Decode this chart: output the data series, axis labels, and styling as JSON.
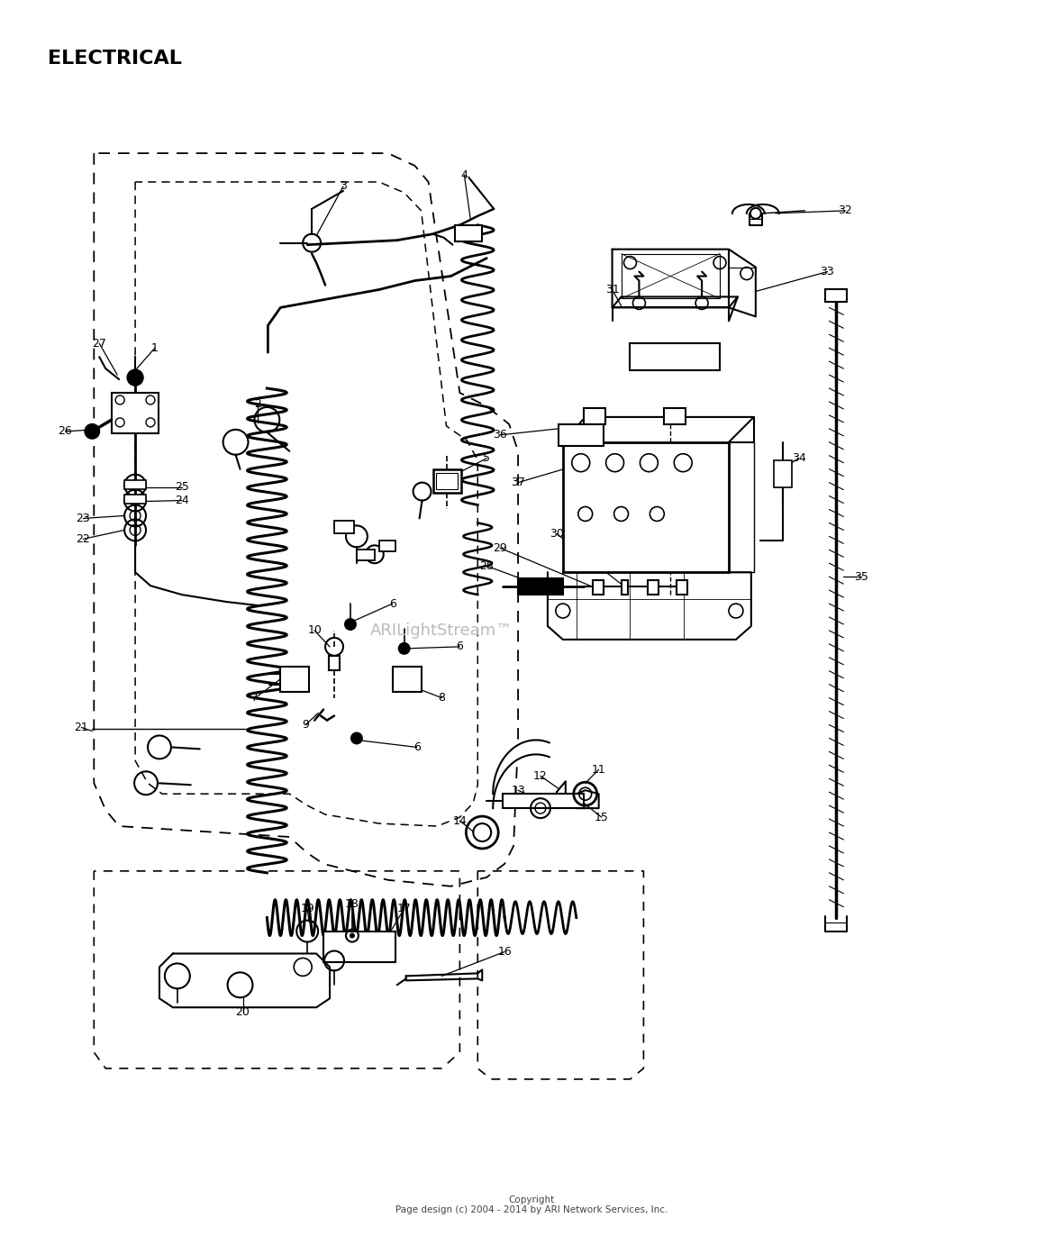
{
  "title": "ELECTRICAL",
  "background_color": "#ffffff",
  "text_color": "#000000",
  "copyright_text": "Copyright\nPage design (c) 2004 - 2014 by ARI Network Services, Inc.",
  "watermark": "ARILightStream™",
  "fig_width": 11.8,
  "fig_height": 13.72,
  "dpi": 100
}
